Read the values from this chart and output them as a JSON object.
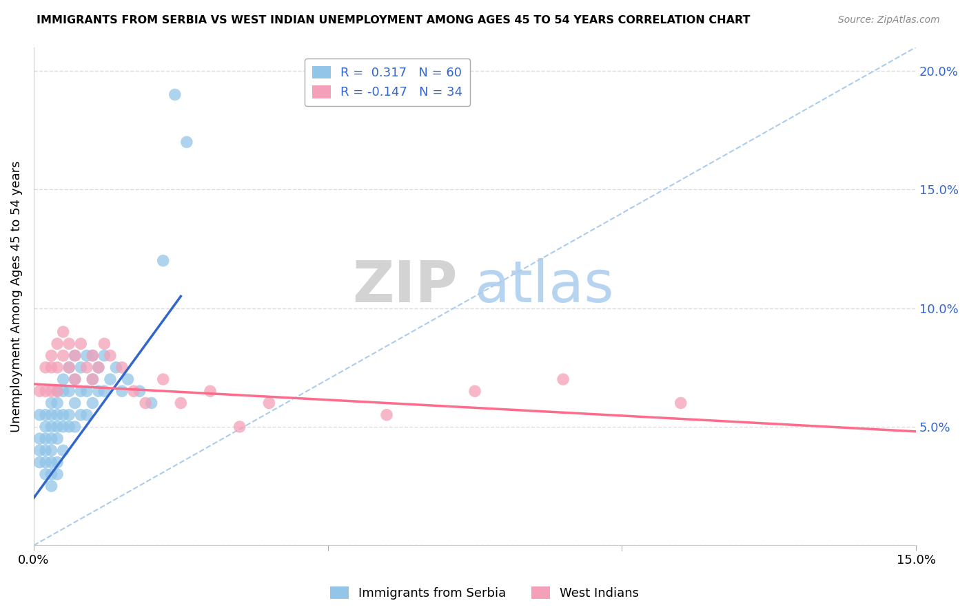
{
  "title": "IMMIGRANTS FROM SERBIA VS WEST INDIAN UNEMPLOYMENT AMONG AGES 45 TO 54 YEARS CORRELATION CHART",
  "source": "Source: ZipAtlas.com",
  "ylabel": "Unemployment Among Ages 45 to 54 years",
  "xlim": [
    0.0,
    0.15
  ],
  "ylim": [
    0.0,
    0.21
  ],
  "serbia_R": 0.317,
  "serbia_N": 60,
  "westindian_R": -0.147,
  "westindian_N": 34,
  "serbia_color": "#92C5E8",
  "westindian_color": "#F4A0B8",
  "serbia_line_color": "#3366CC",
  "westindian_line_color": "#FF6B8A",
  "diagonal_color": "#AACCEE",
  "watermark_zip": "ZIP",
  "watermark_atlas": "atlas",
  "serbia_x": [
    0.001,
    0.001,
    0.001,
    0.001,
    0.002,
    0.002,
    0.002,
    0.002,
    0.002,
    0.002,
    0.003,
    0.003,
    0.003,
    0.003,
    0.003,
    0.003,
    0.003,
    0.003,
    0.004,
    0.004,
    0.004,
    0.004,
    0.004,
    0.004,
    0.004,
    0.005,
    0.005,
    0.005,
    0.005,
    0.005,
    0.006,
    0.006,
    0.006,
    0.006,
    0.007,
    0.007,
    0.007,
    0.007,
    0.008,
    0.008,
    0.008,
    0.009,
    0.009,
    0.009,
    0.01,
    0.01,
    0.01,
    0.011,
    0.011,
    0.012,
    0.012,
    0.013,
    0.014,
    0.015,
    0.016,
    0.018,
    0.02,
    0.022,
    0.024,
    0.026
  ],
  "serbia_y": [
    0.055,
    0.045,
    0.04,
    0.035,
    0.055,
    0.05,
    0.045,
    0.04,
    0.035,
    0.03,
    0.06,
    0.055,
    0.05,
    0.045,
    0.04,
    0.035,
    0.03,
    0.025,
    0.065,
    0.06,
    0.055,
    0.05,
    0.045,
    0.035,
    0.03,
    0.07,
    0.065,
    0.055,
    0.05,
    0.04,
    0.075,
    0.065,
    0.055,
    0.05,
    0.08,
    0.07,
    0.06,
    0.05,
    0.075,
    0.065,
    0.055,
    0.08,
    0.065,
    0.055,
    0.08,
    0.07,
    0.06,
    0.075,
    0.065,
    0.08,
    0.065,
    0.07,
    0.075,
    0.065,
    0.07,
    0.065,
    0.06,
    0.12,
    0.19,
    0.17
  ],
  "westindian_x": [
    0.001,
    0.002,
    0.002,
    0.003,
    0.003,
    0.003,
    0.004,
    0.004,
    0.004,
    0.005,
    0.005,
    0.006,
    0.006,
    0.007,
    0.007,
    0.008,
    0.009,
    0.01,
    0.01,
    0.011,
    0.012,
    0.013,
    0.015,
    0.017,
    0.019,
    0.022,
    0.025,
    0.03,
    0.035,
    0.04,
    0.06,
    0.075,
    0.09,
    0.11
  ],
  "westindian_y": [
    0.065,
    0.075,
    0.065,
    0.08,
    0.075,
    0.065,
    0.085,
    0.075,
    0.065,
    0.09,
    0.08,
    0.085,
    0.075,
    0.08,
    0.07,
    0.085,
    0.075,
    0.08,
    0.07,
    0.075,
    0.085,
    0.08,
    0.075,
    0.065,
    0.06,
    0.07,
    0.06,
    0.065,
    0.05,
    0.06,
    0.055,
    0.065,
    0.07,
    0.06
  ],
  "serbia_line_x": [
    0.0,
    0.025
  ],
  "serbia_line_y": [
    0.02,
    0.105
  ],
  "westindian_line_x": [
    0.0,
    0.15
  ],
  "westindian_line_y": [
    0.068,
    0.048
  ]
}
